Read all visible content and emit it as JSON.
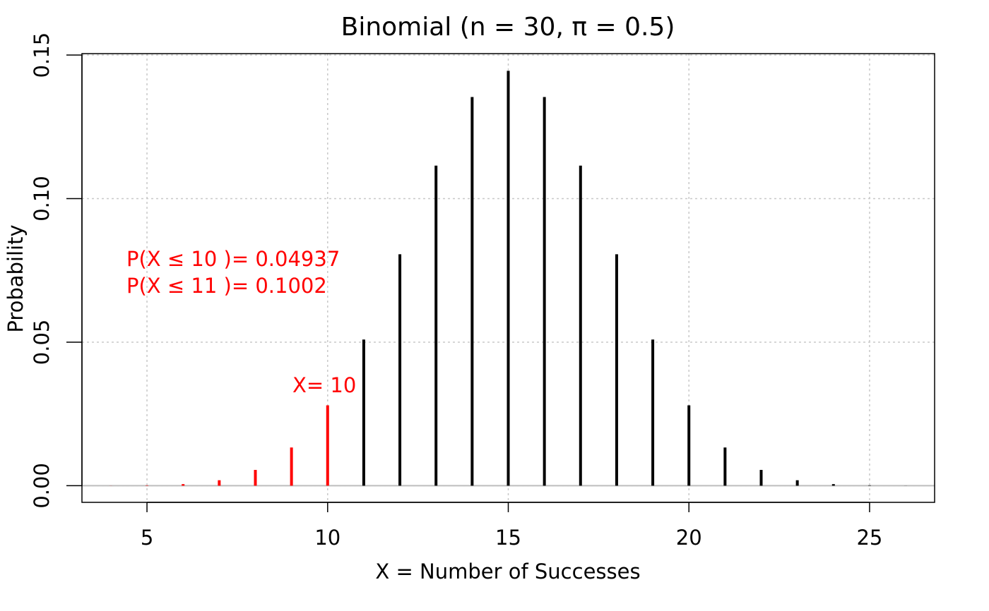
{
  "chart_data": {
    "type": "bar",
    "title": "Binomial (n = 30, π = 0.5)",
    "xlabel": "X = Number of Successes",
    "ylabel": "Probability",
    "xlim": [
      3.2,
      26.8
    ],
    "ylim": [
      -0.0058,
      0.1505
    ],
    "x_ticks": [
      5,
      10,
      15,
      20,
      25
    ],
    "x_tick_labels": [
      "5",
      "10",
      "15",
      "20",
      "25"
    ],
    "y_ticks": [
      0.0,
      0.05,
      0.1,
      0.15
    ],
    "y_tick_labels": [
      "0.00",
      "0.05",
      "0.10",
      "0.15"
    ],
    "grid": true,
    "colors": {
      "highlight": "#ff0000",
      "default": "#000000",
      "grid": "#c8c8c8",
      "baseline": "#bebebe"
    },
    "highlight_max_x": 10,
    "x": [
      4,
      5,
      6,
      7,
      8,
      9,
      10,
      11,
      12,
      13,
      14,
      15,
      16,
      17,
      18,
      19,
      20,
      21,
      22,
      23,
      24,
      25,
      26
    ],
    "values": [
      2.5e-05,
      0.00013,
      0.00055,
      0.0019,
      0.0055,
      0.0133,
      0.028,
      0.0509,
      0.0806,
      0.1115,
      0.1354,
      0.1445,
      0.1354,
      0.1115,
      0.0806,
      0.0509,
      0.028,
      0.0133,
      0.0055,
      0.0019,
      0.00055,
      0.00013,
      2.5e-05
    ],
    "annotations": {
      "x_marker": "X= 10",
      "cdf_line1": "P(X ≤ 10 )= 0.04937",
      "cdf_line2": "P(X ≤ 11 )= 0.1002"
    }
  }
}
